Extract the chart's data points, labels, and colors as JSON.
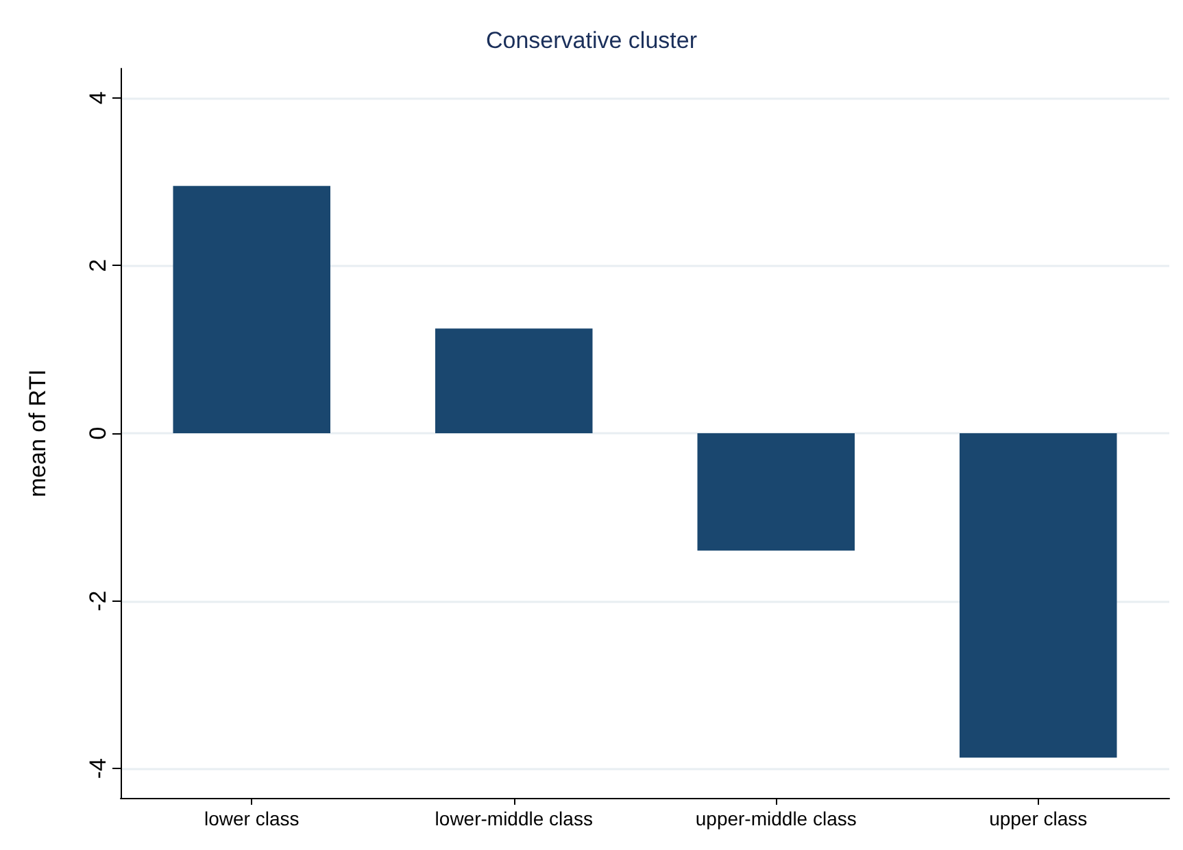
{
  "chart_data": {
    "type": "bar",
    "title": "Conservative cluster",
    "ylabel": "mean of RTI",
    "categories": [
      "lower class",
      "lower-middle class",
      "upper-middle class",
      "upper class"
    ],
    "values": [
      2.95,
      1.25,
      -1.4,
      -3.87
    ],
    "color": "#1a476f",
    "ylim": [
      -4.35,
      4.35
    ],
    "yticks": [
      -4,
      -2,
      0,
      2,
      4
    ],
    "grid": "y"
  }
}
